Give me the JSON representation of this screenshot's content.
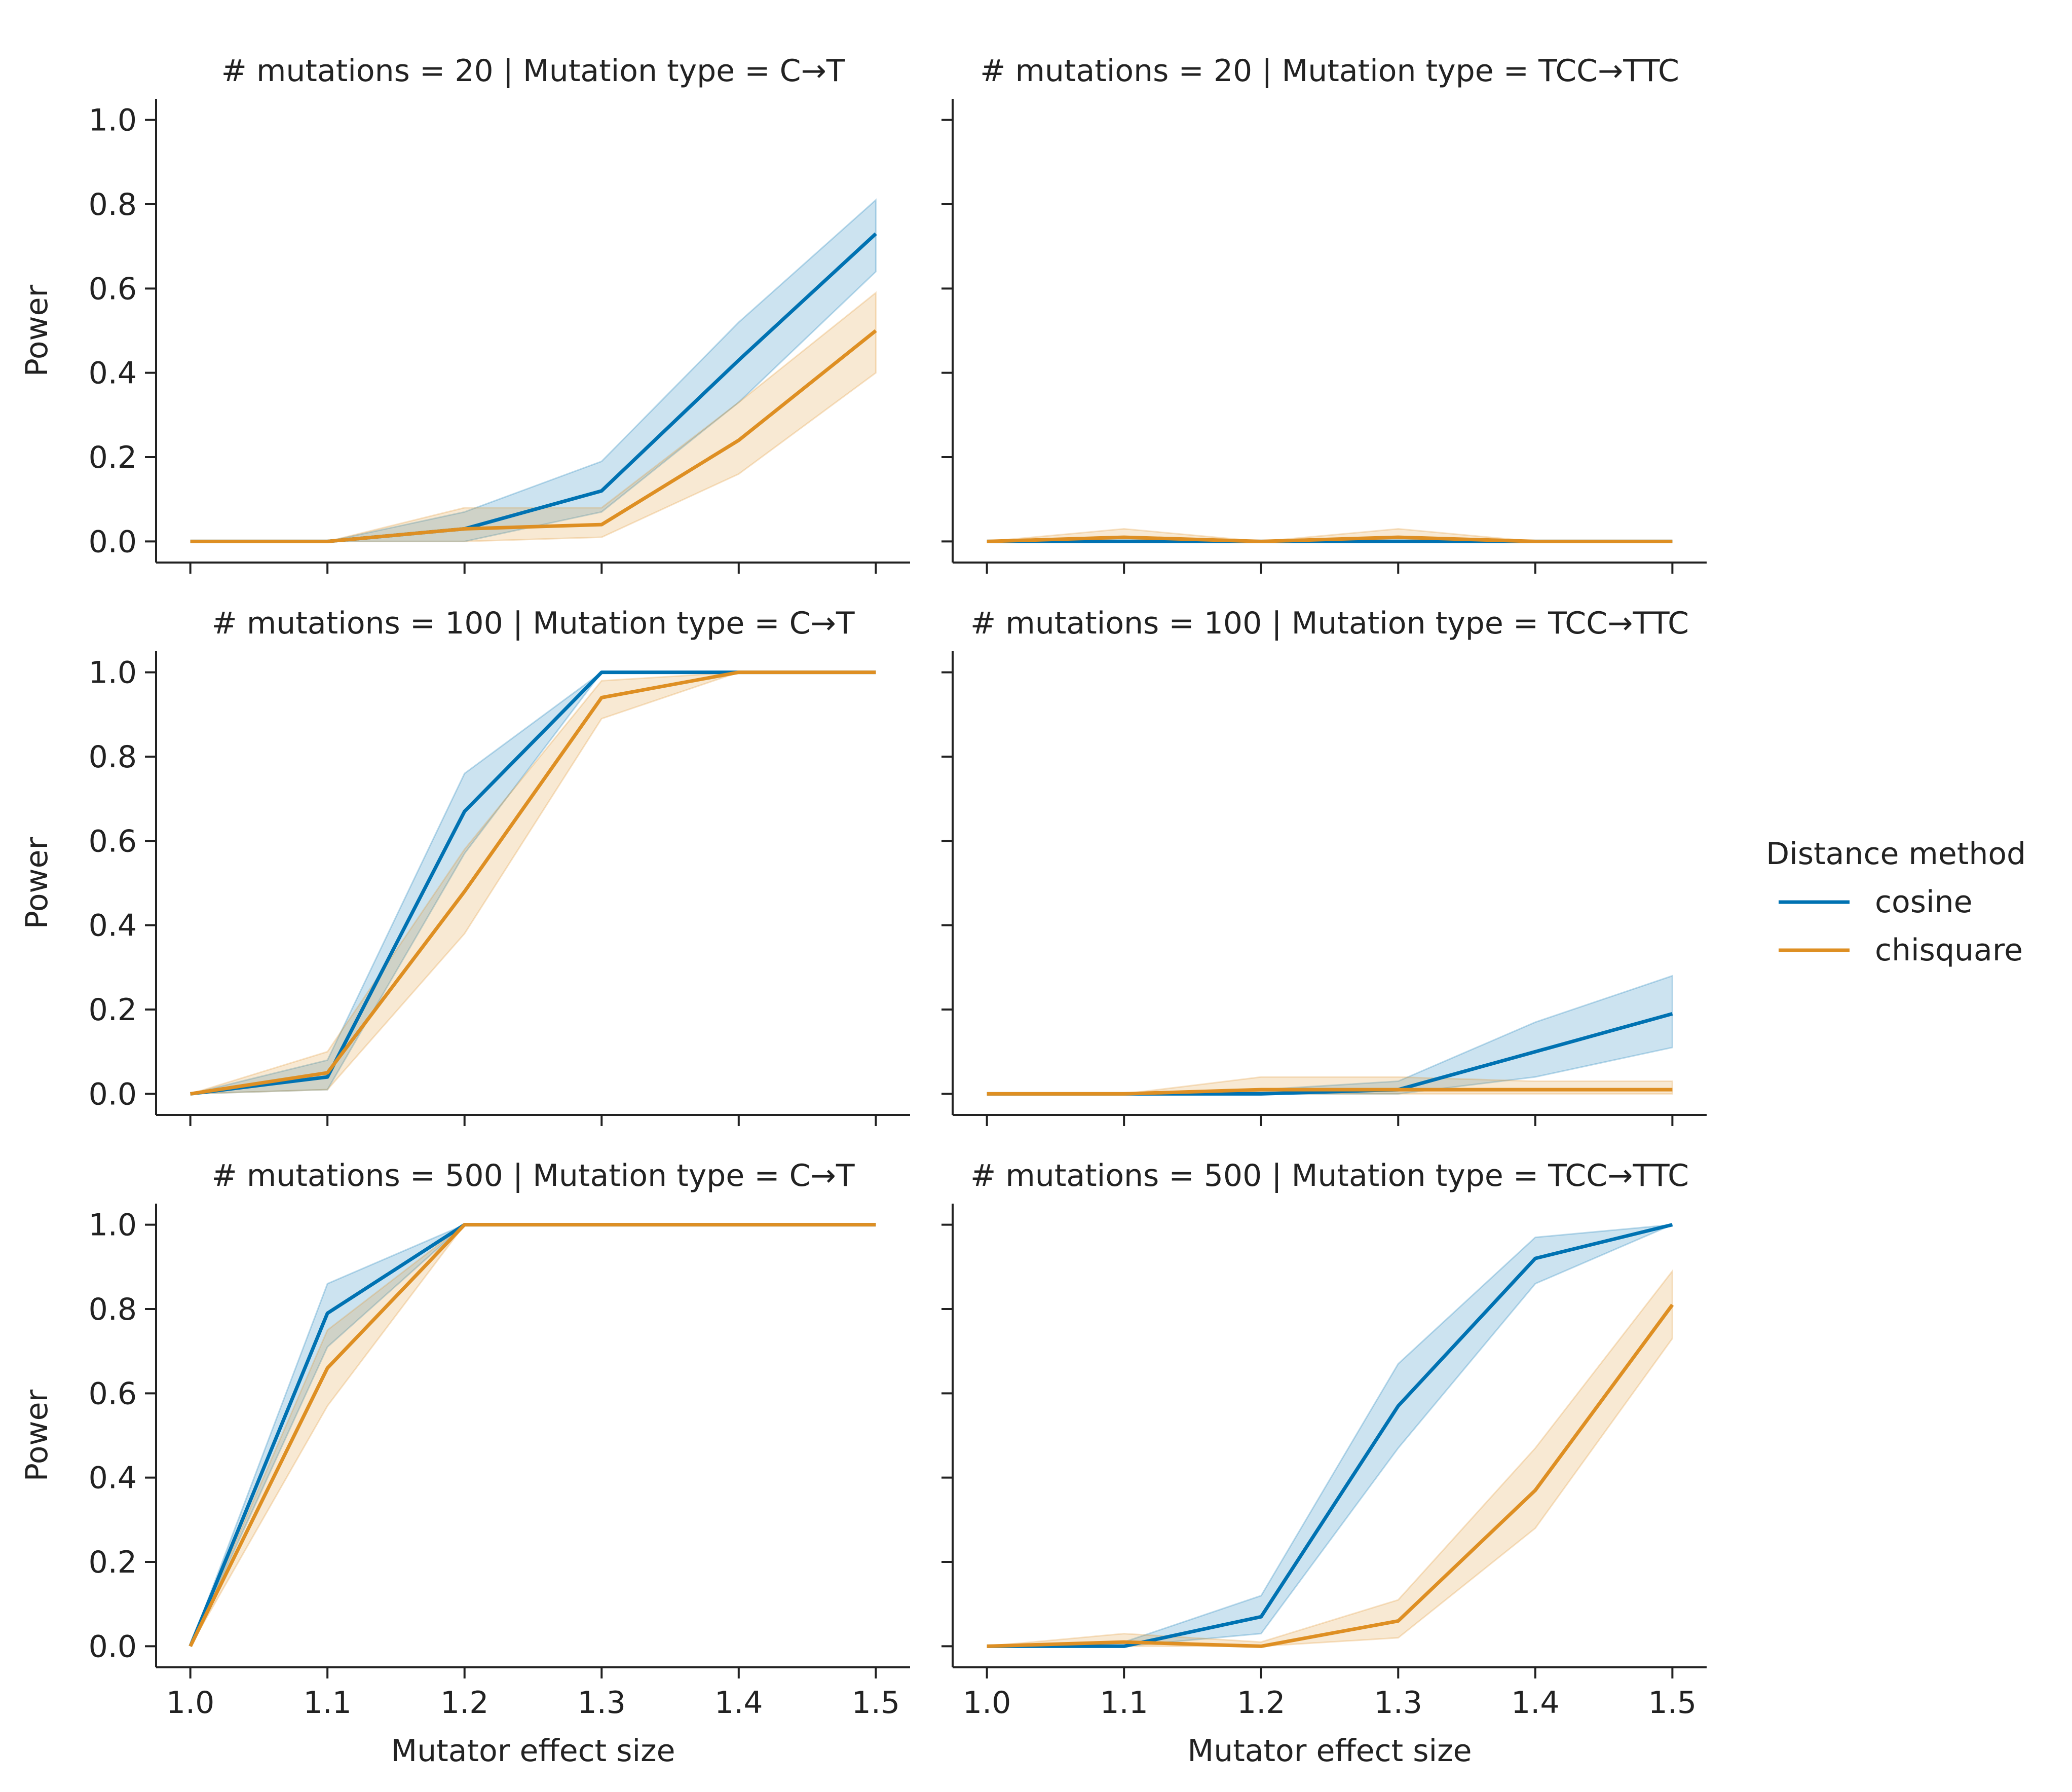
{
  "legend": {
    "title": "Distance method",
    "placement": "right"
  },
  "series_style": {
    "cosine": {
      "color": "#0072b2"
    },
    "chisquare": {
      "color": "#de8f23"
    }
  },
  "chart_data": [
    {
      "type": "line",
      "title": "# mutations = 20 | Mutation type = C→T",
      "xlabel": "",
      "ylabel": "Power",
      "x": [
        1.0,
        1.1,
        1.2,
        1.3,
        1.4,
        1.5
      ],
      "xlim": [
        0.975,
        1.525
      ],
      "ylim": [
        -0.05,
        1.05
      ],
      "xticks": [
        "1.0",
        "1.1",
        "1.2",
        "1.3",
        "1.4",
        "1.5"
      ],
      "yticks": [
        "0.0",
        "0.2",
        "0.4",
        "0.6",
        "0.8",
        "1.0"
      ],
      "show_xtick_labels": false,
      "show_ytick_labels": true,
      "series": [
        {
          "name": "cosine",
          "values": [
            0,
            0,
            0.03,
            0.12,
            0.43,
            0.73
          ],
          "lower": [
            0,
            0,
            0.0,
            0.07,
            0.33,
            0.64
          ],
          "upper": [
            0,
            0,
            0.07,
            0.19,
            0.52,
            0.81
          ]
        },
        {
          "name": "chisquare",
          "values": [
            0,
            0,
            0.03,
            0.04,
            0.24,
            0.5
          ],
          "lower": [
            0,
            0,
            0.0,
            0.01,
            0.16,
            0.4
          ],
          "upper": [
            0,
            0,
            0.08,
            0.08,
            0.33,
            0.59
          ]
        }
      ]
    },
    {
      "type": "line",
      "title": "# mutations = 20 | Mutation type = TCC→TTC",
      "xlabel": "",
      "ylabel": "",
      "x": [
        1.0,
        1.1,
        1.2,
        1.3,
        1.4,
        1.5
      ],
      "xlim": [
        0.975,
        1.525
      ],
      "ylim": [
        -0.05,
        1.05
      ],
      "xticks": [
        "1.0",
        "1.1",
        "1.2",
        "1.3",
        "1.4",
        "1.5"
      ],
      "yticks": [
        "0.0",
        "0.2",
        "0.4",
        "0.6",
        "0.8",
        "1.0"
      ],
      "show_xtick_labels": false,
      "show_ytick_labels": false,
      "series": [
        {
          "name": "cosine",
          "values": [
            0,
            0.0,
            0,
            0.0,
            0,
            0
          ],
          "lower": [
            0,
            0,
            0,
            0,
            0,
            0
          ],
          "upper": [
            0,
            0.01,
            0,
            0.01,
            0,
            0
          ]
        },
        {
          "name": "chisquare",
          "values": [
            0,
            0.01,
            0,
            0.01,
            0,
            0
          ],
          "lower": [
            0,
            0,
            0,
            0,
            0,
            0
          ],
          "upper": [
            0,
            0.03,
            0,
            0.03,
            0,
            0
          ]
        }
      ]
    },
    {
      "type": "line",
      "title": "# mutations = 100 | Mutation type = C→T",
      "xlabel": "",
      "ylabel": "Power",
      "x": [
        1.0,
        1.1,
        1.2,
        1.3,
        1.4,
        1.5
      ],
      "xlim": [
        0.975,
        1.525
      ],
      "ylim": [
        -0.05,
        1.05
      ],
      "xticks": [
        "1.0",
        "1.1",
        "1.2",
        "1.3",
        "1.4",
        "1.5"
      ],
      "yticks": [
        "0.0",
        "0.2",
        "0.4",
        "0.6",
        "0.8",
        "1.0"
      ],
      "show_xtick_labels": false,
      "show_ytick_labels": true,
      "series": [
        {
          "name": "cosine",
          "values": [
            0,
            0.04,
            0.67,
            1.0,
            1.0,
            1.0
          ],
          "lower": [
            0,
            0.01,
            0.57,
            1.0,
            1.0,
            1.0
          ],
          "upper": [
            0,
            0.08,
            0.76,
            1.0,
            1.0,
            1.0
          ]
        },
        {
          "name": "chisquare",
          "values": [
            0,
            0.05,
            0.48,
            0.94,
            1.0,
            1.0
          ],
          "lower": [
            0,
            0.01,
            0.38,
            0.89,
            1.0,
            1.0
          ],
          "upper": [
            0,
            0.1,
            0.58,
            0.98,
            1.0,
            1.0
          ]
        }
      ]
    },
    {
      "type": "line",
      "title": "# mutations = 100 | Mutation type = TCC→TTC",
      "xlabel": "",
      "ylabel": "",
      "x": [
        1.0,
        1.1,
        1.2,
        1.3,
        1.4,
        1.5
      ],
      "xlim": [
        0.975,
        1.525
      ],
      "ylim": [
        -0.05,
        1.05
      ],
      "xticks": [
        "1.0",
        "1.1",
        "1.2",
        "1.3",
        "1.4",
        "1.5"
      ],
      "yticks": [
        "0.0",
        "0.2",
        "0.4",
        "0.6",
        "0.8",
        "1.0"
      ],
      "show_xtick_labels": false,
      "show_ytick_labels": false,
      "series": [
        {
          "name": "cosine",
          "values": [
            0,
            0,
            0.0,
            0.01,
            0.1,
            0.19
          ],
          "lower": [
            0,
            0,
            0,
            0.0,
            0.04,
            0.11
          ],
          "upper": [
            0,
            0,
            0.01,
            0.03,
            0.17,
            0.28
          ]
        },
        {
          "name": "chisquare",
          "values": [
            0,
            0,
            0.01,
            0.01,
            0.01,
            0.01
          ],
          "lower": [
            0,
            0,
            0,
            0,
            0,
            0
          ],
          "upper": [
            0,
            0,
            0.04,
            0.04,
            0.03,
            0.03
          ]
        }
      ]
    },
    {
      "type": "line",
      "title": "# mutations = 500 | Mutation type = C→T",
      "xlabel": "Mutator effect size",
      "ylabel": "Power",
      "x": [
        1.0,
        1.1,
        1.2,
        1.3,
        1.4,
        1.5
      ],
      "xlim": [
        0.975,
        1.525
      ],
      "ylim": [
        -0.05,
        1.05
      ],
      "xticks": [
        "1.0",
        "1.1",
        "1.2",
        "1.3",
        "1.4",
        "1.5"
      ],
      "yticks": [
        "0.0",
        "0.2",
        "0.4",
        "0.6",
        "0.8",
        "1.0"
      ],
      "show_xtick_labels": true,
      "show_ytick_labels": true,
      "series": [
        {
          "name": "cosine",
          "values": [
            0,
            0.79,
            1.0,
            1.0,
            1.0,
            1.0
          ],
          "lower": [
            0,
            0.71,
            1.0,
            1.0,
            1.0,
            1.0
          ],
          "upper": [
            0,
            0.86,
            1.0,
            1.0,
            1.0,
            1.0
          ]
        },
        {
          "name": "chisquare",
          "values": [
            0,
            0.66,
            1.0,
            1.0,
            1.0,
            1.0
          ],
          "lower": [
            0,
            0.57,
            1.0,
            1.0,
            1.0,
            1.0
          ],
          "upper": [
            0,
            0.75,
            1.0,
            1.0,
            1.0,
            1.0
          ]
        }
      ]
    },
    {
      "type": "line",
      "title": "# mutations = 500 | Mutation type = TCC→TTC",
      "xlabel": "Mutator effect size",
      "ylabel": "",
      "x": [
        1.0,
        1.1,
        1.2,
        1.3,
        1.4,
        1.5
      ],
      "xlim": [
        0.975,
        1.525
      ],
      "ylim": [
        -0.05,
        1.05
      ],
      "xticks": [
        "1.0",
        "1.1",
        "1.2",
        "1.3",
        "1.4",
        "1.5"
      ],
      "yticks": [
        "0.0",
        "0.2",
        "0.4",
        "0.6",
        "0.8",
        "1.0"
      ],
      "show_xtick_labels": true,
      "show_ytick_labels": false,
      "series": [
        {
          "name": "cosine",
          "values": [
            0,
            0.0,
            0.07,
            0.57,
            0.92,
            1.0
          ],
          "lower": [
            0,
            0,
            0.03,
            0.47,
            0.86,
            1.0
          ],
          "upper": [
            0,
            0.01,
            0.12,
            0.67,
            0.97,
            1.0
          ]
        },
        {
          "name": "chisquare",
          "values": [
            0,
            0.01,
            0.0,
            0.06,
            0.37,
            0.81
          ],
          "lower": [
            0,
            0,
            0,
            0.02,
            0.28,
            0.73
          ],
          "upper": [
            0,
            0.03,
            0.01,
            0.11,
            0.47,
            0.89
          ]
        }
      ]
    }
  ]
}
